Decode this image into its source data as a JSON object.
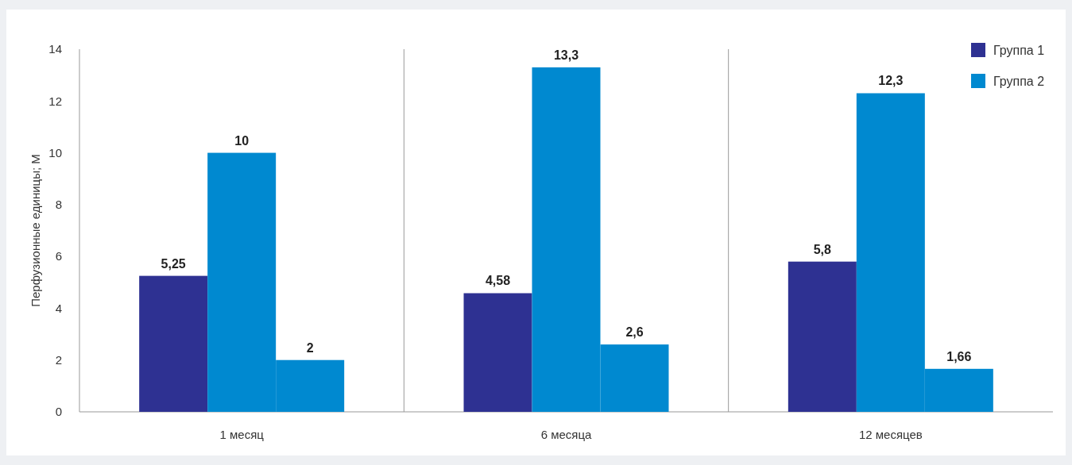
{
  "chart_data": {
    "type": "bar",
    "ylabel": "Перфузионные единицы; М",
    "categories": [
      "1 месяц",
      "6 месяца",
      "12 месяцев"
    ],
    "series": [
      {
        "name": "Группа 1",
        "color": "#2e3192",
        "values": [
          5.25,
          4.58,
          5.8
        ],
        "value_labels": [
          "5,25",
          "4,58",
          "5,8"
        ]
      },
      {
        "name": "Группа 2",
        "color": "#0089d0",
        "values": [
          10,
          13.3,
          12.3
        ],
        "value_labels": [
          "10",
          "13,3",
          "12,3"
        ]
      },
      {
        "color": "#0089d0",
        "values": [
          2,
          2.6,
          1.66
        ],
        "value_labels": [
          "2",
          "2,6",
          "1,66"
        ]
      }
    ],
    "ylim": [
      0,
      14
    ],
    "yticks": [
      0,
      2,
      4,
      6,
      8,
      10,
      12,
      14
    ],
    "legend": "top right"
  }
}
